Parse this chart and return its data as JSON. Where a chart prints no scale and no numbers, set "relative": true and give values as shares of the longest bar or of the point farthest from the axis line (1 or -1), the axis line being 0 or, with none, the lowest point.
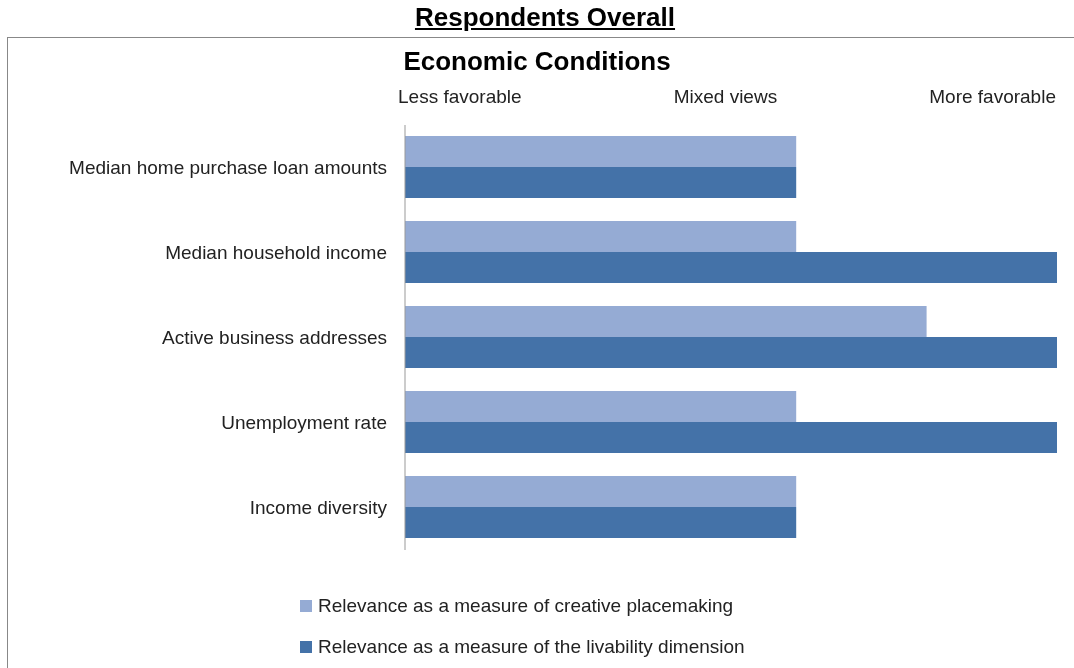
{
  "chart_data": {
    "type": "bar",
    "title": "Respondents Overall",
    "subtitle": "Economic Conditions",
    "orientation": "horizontal",
    "relative": true,
    "categories": [
      "Median home purchase loan amounts",
      "Median household income",
      "Active business addresses",
      "Unemployment rate",
      "Income diversity"
    ],
    "series": [
      {
        "name": "Relevance as a measure of creative placemaking",
        "color": "#95abd4",
        "values": [
          0.6,
          0.6,
          0.8,
          0.6,
          0.6
        ]
      },
      {
        "name": "Relevance as a measure of the livability dimension",
        "color": "#4472a8",
        "values": [
          0.6,
          1,
          1,
          1,
          0.6
        ]
      }
    ],
    "annotations": [
      "Less favorable",
      "Mixed views",
      "More favorable"
    ],
    "legend": "bottom",
    "grid": false
  }
}
